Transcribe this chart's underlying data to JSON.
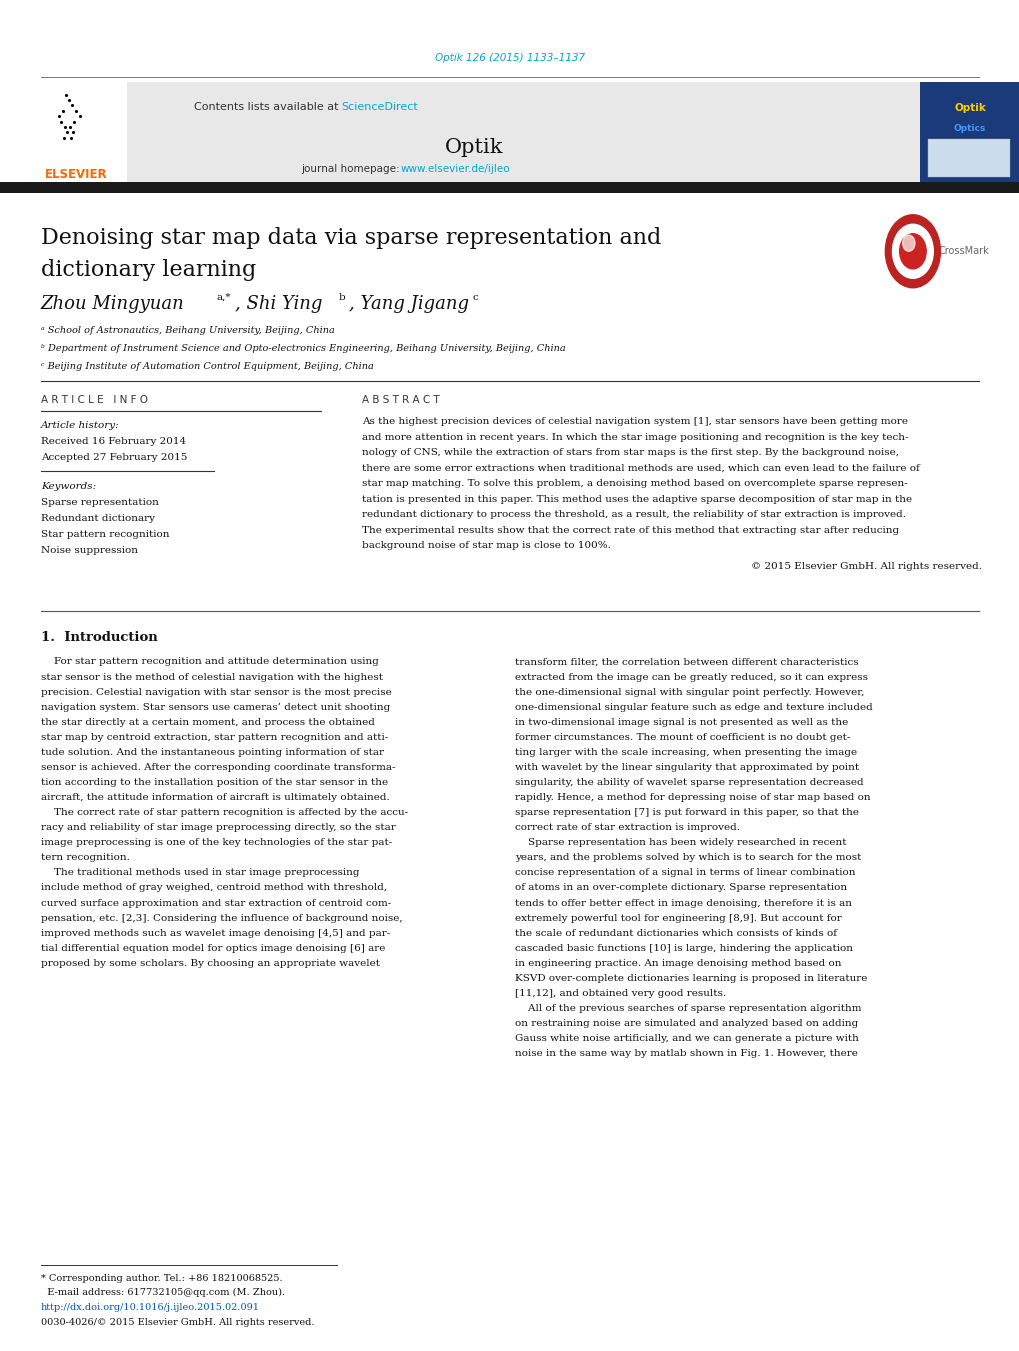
{
  "bg_color": "#ffffff",
  "page_width": 10.2,
  "page_height": 13.51,
  "top_journal_ref": "Optik 126 (2015) 1133–1137",
  "top_journal_ref_color": "#00aacc",
  "header_bg_color": "#e8e8e8",
  "header_contents_text": "Contents lists available at ",
  "header_sciencedirect": "ScienceDirect",
  "header_sciencedirect_color": "#00aacc",
  "header_journal_name": "Optik",
  "journal_homepage_text": "journal homepage: ",
  "journal_homepage_url": "www.elsevier.de/ijleo",
  "journal_homepage_url_color": "#00aacc",
  "elsevier_color": "#ff6600",
  "black_bar_color": "#1a1a1a",
  "article_title_line1": "Denoising star map data via sparse representation and",
  "article_title_line2": "dictionary learning",
  "article_title_fontsize": 16,
  "author1_name": "Zhou Mingyuan",
  "author1_sup": "a,*",
  "author2_name": ", Shi Ying",
  "author2_sup": "b",
  "author3_name": ", Yang Jigang",
  "author3_sup": "c",
  "affil_a": "ᵃ School of Astronautics, Beihang University, Beijing, China",
  "affil_b": "ᵇ Department of Instrument Science and Opto-electronics Engineering, Beihang University, Beijing, China",
  "affil_c": "ᶜ Beijing Institute of Automation Control Equipment, Beijing, China",
  "section_article_info": "A R T I C L E   I N F O",
  "section_abstract": "A B S T R A C T",
  "article_history_title": "Article history:",
  "received": "Received 16 February 2014",
  "accepted": "Accepted 27 February 2015",
  "keywords_title": "Keywords:",
  "keywords": [
    "Sparse representation",
    "Redundant dictionary",
    "Star pattern recognition",
    "Noise suppression"
  ],
  "abstract_lines": [
    "As the highest precision devices of celestial navigation system [1], star sensors have been getting more",
    "and more attention in recent years. In which the star image positioning and recognition is the key tech-",
    "nology of CNS, while the extraction of stars from star maps is the first step. By the background noise,",
    "there are some error extractions when traditional methods are used, which can even lead to the failure of",
    "star map matching. To solve this problem, a denoising method based on overcomplete sparse represen-",
    "tation is presented in this paper. This method uses the adaptive sparse decomposition of star map in the",
    "redundant dictionary to process the threshold, as a result, the reliability of star extraction is improved.",
    "The experimental results show that the correct rate of this method that extracting star after reducing",
    "background noise of star map is close to 100%."
  ],
  "copyright_text": "© 2015 Elsevier GmbH. All rights reserved.",
  "intro_title": "1.  Introduction",
  "left_intro_lines": [
    "    For star pattern recognition and attitude determination using",
    "star sensor is the method of celestial navigation with the highest",
    "precision. Celestial navigation with star sensor is the most precise",
    "navigation system. Star sensors use cameras’ detect unit shooting",
    "the star directly at a certain moment, and process the obtained",
    "star map by centroid extraction, star pattern recognition and atti-",
    "tude solution. And the instantaneous pointing information of star",
    "sensor is achieved. After the corresponding coordinate transforma-",
    "tion according to the installation position of the star sensor in the",
    "aircraft, the attitude information of aircraft is ultimately obtained.",
    "    The correct rate of star pattern recognition is affected by the accu-",
    "racy and reliability of star image preprocessing directly, so the star",
    "image preprocessing is one of the key technologies of the star pat-",
    "tern recognition.",
    "    The traditional methods used in star image preprocessing",
    "include method of gray weighed, centroid method with threshold,",
    "curved surface approximation and star extraction of centroid com-",
    "pensation, etc. [2,3]. Considering the influence of background noise,",
    "improved methods such as wavelet image denoising [4,5] and par-",
    "tial differential equation model for optics image denoising [6] are",
    "proposed by some scholars. By choosing an appropriate wavelet"
  ],
  "right_intro_lines": [
    "transform filter, the correlation between different characteristics",
    "extracted from the image can be greatly reduced, so it can express",
    "the one-dimensional signal with singular point perfectly. However,",
    "one-dimensional singular feature such as edge and texture included",
    "in two-dimensional image signal is not presented as well as the",
    "former circumstances. The mount of coefficient is no doubt get-",
    "ting larger with the scale increasing, when presenting the image",
    "with wavelet by the linear singularity that approximated by point",
    "singularity, the ability of wavelet sparse representation decreased",
    "rapidly. Hence, a method for depressing noise of star map based on",
    "sparse representation [7] is put forward in this paper, so that the",
    "correct rate of star extraction is improved.",
    "    Sparse representation has been widely researched in recent",
    "years, and the problems solved by which is to search for the most",
    "concise representation of a signal in terms of linear combination",
    "of atoms in an over-complete dictionary. Sparse representation",
    "tends to offer better effect in image denoising, therefore it is an",
    "extremely powerful tool for engineering [8,9]. But account for",
    "the scale of redundant dictionaries which consists of kinds of",
    "cascaded basic functions [10] is large, hindering the application",
    "in engineering practice. An image denoising method based on",
    "KSVD over-complete dictionaries learning is proposed in literature",
    "[11,12], and obtained very good results.",
    "    All of the previous searches of sparse representation algorithm",
    "on restraining noise are simulated and analyzed based on adding",
    "Gauss white noise artificially, and we can generate a picture with",
    "noise in the same way by matlab shown in Fig. 1. However, there"
  ],
  "footer_line1": "* Corresponding author. Tel.: +86 18210068525.",
  "footer_line2": "  E-mail address: 617732105@qq.com (M. Zhou).",
  "footer_doi": "http://dx.doi.org/10.1016/j.ijleo.2015.02.091",
  "footer_issn": "0030-4026/© 2015 Elsevier GmbH. All rights reserved."
}
